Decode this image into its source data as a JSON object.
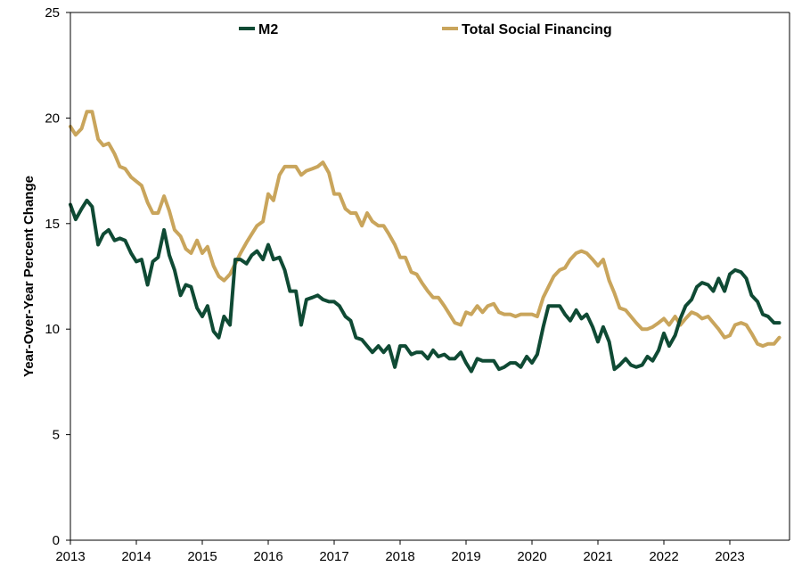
{
  "chart_data": {
    "type": "line",
    "title": "",
    "xlabel": "",
    "ylabel": "Year-Over-Year Percent Change",
    "xlim": [
      2013,
      2023.83
    ],
    "ylim": [
      0,
      25
    ],
    "x_ticks": [
      "2013",
      "2014",
      "2015",
      "2016",
      "2017",
      "2018",
      "2019",
      "2020",
      "2021",
      "2022",
      "2023"
    ],
    "y_ticks": [
      "0",
      "5",
      "10",
      "15",
      "20",
      "25"
    ],
    "grid": false,
    "legend_position": "top",
    "series": [
      {
        "name": "M2",
        "color": "#0f4a34",
        "points": [
          [
            2013.0,
            15.9
          ],
          [
            2013.08,
            15.2
          ],
          [
            2013.17,
            15.7
          ],
          [
            2013.25,
            16.1
          ],
          [
            2013.33,
            15.8
          ],
          [
            2013.42,
            14.0
          ],
          [
            2013.5,
            14.5
          ],
          [
            2013.58,
            14.7
          ],
          [
            2013.67,
            14.2
          ],
          [
            2013.75,
            14.3
          ],
          [
            2013.83,
            14.2
          ],
          [
            2013.92,
            13.6
          ],
          [
            2014.0,
            13.2
          ],
          [
            2014.08,
            13.3
          ],
          [
            2014.17,
            12.1
          ],
          [
            2014.25,
            13.2
          ],
          [
            2014.33,
            13.4
          ],
          [
            2014.42,
            14.7
          ],
          [
            2014.5,
            13.5
          ],
          [
            2014.58,
            12.8
          ],
          [
            2014.67,
            11.6
          ],
          [
            2014.75,
            12.1
          ],
          [
            2014.83,
            12.0
          ],
          [
            2014.92,
            11.0
          ],
          [
            2015.0,
            10.6
          ],
          [
            2015.08,
            11.1
          ],
          [
            2015.17,
            9.9
          ],
          [
            2015.25,
            9.6
          ],
          [
            2015.33,
            10.6
          ],
          [
            2015.42,
            10.2
          ],
          [
            2015.5,
            13.3
          ],
          [
            2015.58,
            13.3
          ],
          [
            2015.67,
            13.1
          ],
          [
            2015.75,
            13.5
          ],
          [
            2015.83,
            13.7
          ],
          [
            2015.92,
            13.3
          ],
          [
            2016.0,
            14.0
          ],
          [
            2016.08,
            13.3
          ],
          [
            2016.17,
            13.4
          ],
          [
            2016.25,
            12.8
          ],
          [
            2016.33,
            11.8
          ],
          [
            2016.42,
            11.8
          ],
          [
            2016.5,
            10.2
          ],
          [
            2016.58,
            11.4
          ],
          [
            2016.67,
            11.5
          ],
          [
            2016.75,
            11.6
          ],
          [
            2016.83,
            11.4
          ],
          [
            2016.92,
            11.3
          ],
          [
            2017.0,
            11.3
          ],
          [
            2017.08,
            11.1
          ],
          [
            2017.17,
            10.6
          ],
          [
            2017.25,
            10.4
          ],
          [
            2017.33,
            9.6
          ],
          [
            2017.42,
            9.5
          ],
          [
            2017.5,
            9.2
          ],
          [
            2017.58,
            8.9
          ],
          [
            2017.67,
            9.2
          ],
          [
            2017.75,
            8.9
          ],
          [
            2017.83,
            9.2
          ],
          [
            2017.92,
            8.2
          ],
          [
            2018.0,
            9.2
          ],
          [
            2018.08,
            9.2
          ],
          [
            2018.17,
            8.8
          ],
          [
            2018.25,
            8.9
          ],
          [
            2018.33,
            8.9
          ],
          [
            2018.42,
            8.6
          ],
          [
            2018.5,
            9.0
          ],
          [
            2018.58,
            8.7
          ],
          [
            2018.67,
            8.8
          ],
          [
            2018.75,
            8.6
          ],
          [
            2018.83,
            8.6
          ],
          [
            2018.92,
            8.9
          ],
          [
            2019.0,
            8.4
          ],
          [
            2019.08,
            8.0
          ],
          [
            2019.17,
            8.6
          ],
          [
            2019.25,
            8.5
          ],
          [
            2019.33,
            8.5
          ],
          [
            2019.42,
            8.5
          ],
          [
            2019.5,
            8.1
          ],
          [
            2019.58,
            8.2
          ],
          [
            2019.67,
            8.4
          ],
          [
            2019.75,
            8.4
          ],
          [
            2019.83,
            8.2
          ],
          [
            2019.92,
            8.7
          ],
          [
            2020.0,
            8.4
          ],
          [
            2020.08,
            8.8
          ],
          [
            2020.17,
            10.1
          ],
          [
            2020.25,
            11.1
          ],
          [
            2020.33,
            11.1
          ],
          [
            2020.42,
            11.1
          ],
          [
            2020.5,
            10.7
          ],
          [
            2020.58,
            10.4
          ],
          [
            2020.67,
            10.9
          ],
          [
            2020.75,
            10.5
          ],
          [
            2020.83,
            10.7
          ],
          [
            2020.92,
            10.1
          ],
          [
            2021.0,
            9.4
          ],
          [
            2021.08,
            10.1
          ],
          [
            2021.17,
            9.4
          ],
          [
            2021.25,
            8.1
          ],
          [
            2021.33,
            8.3
          ],
          [
            2021.42,
            8.6
          ],
          [
            2021.5,
            8.3
          ],
          [
            2021.58,
            8.2
          ],
          [
            2021.67,
            8.3
          ],
          [
            2021.75,
            8.7
          ],
          [
            2021.83,
            8.5
          ],
          [
            2021.92,
            9.0
          ],
          [
            2022.0,
            9.8
          ],
          [
            2022.08,
            9.2
          ],
          [
            2022.17,
            9.7
          ],
          [
            2022.25,
            10.5
          ],
          [
            2022.33,
            11.1
          ],
          [
            2022.42,
            11.4
          ],
          [
            2022.5,
            12.0
          ],
          [
            2022.58,
            12.2
          ],
          [
            2022.67,
            12.1
          ],
          [
            2022.75,
            11.8
          ],
          [
            2022.83,
            12.4
          ],
          [
            2022.92,
            11.8
          ],
          [
            2023.0,
            12.6
          ],
          [
            2023.08,
            12.8
          ],
          [
            2023.17,
            12.7
          ],
          [
            2023.25,
            12.4
          ],
          [
            2023.33,
            11.6
          ],
          [
            2023.42,
            11.3
          ],
          [
            2023.5,
            10.7
          ],
          [
            2023.58,
            10.6
          ],
          [
            2023.67,
            10.3
          ],
          [
            2023.75,
            10.3
          ]
        ]
      },
      {
        "name": "Total Social Financing",
        "color": "#c9a55c",
        "points": [
          [
            2013.0,
            19.6
          ],
          [
            2013.08,
            19.2
          ],
          [
            2013.17,
            19.5
          ],
          [
            2013.25,
            20.3
          ],
          [
            2013.33,
            20.3
          ],
          [
            2013.42,
            19.0
          ],
          [
            2013.5,
            18.7
          ],
          [
            2013.58,
            18.8
          ],
          [
            2013.67,
            18.3
          ],
          [
            2013.75,
            17.7
          ],
          [
            2013.83,
            17.6
          ],
          [
            2013.92,
            17.2
          ],
          [
            2014.0,
            17.0
          ],
          [
            2014.08,
            16.8
          ],
          [
            2014.17,
            16.0
          ],
          [
            2014.25,
            15.5
          ],
          [
            2014.33,
            15.5
          ],
          [
            2014.42,
            16.3
          ],
          [
            2014.5,
            15.6
          ],
          [
            2014.58,
            14.7
          ],
          [
            2014.67,
            14.4
          ],
          [
            2014.75,
            13.8
          ],
          [
            2014.83,
            13.6
          ],
          [
            2014.92,
            14.2
          ],
          [
            2015.0,
            13.6
          ],
          [
            2015.08,
            13.9
          ],
          [
            2015.17,
            13.0
          ],
          [
            2015.25,
            12.5
          ],
          [
            2015.33,
            12.3
          ],
          [
            2015.42,
            12.6
          ],
          [
            2015.5,
            13.1
          ],
          [
            2015.58,
            13.6
          ],
          [
            2015.67,
            14.1
          ],
          [
            2015.75,
            14.5
          ],
          [
            2015.83,
            14.9
          ],
          [
            2015.92,
            15.1
          ],
          [
            2016.0,
            16.4
          ],
          [
            2016.08,
            16.1
          ],
          [
            2016.17,
            17.3
          ],
          [
            2016.25,
            17.7
          ],
          [
            2016.33,
            17.7
          ],
          [
            2016.42,
            17.7
          ],
          [
            2016.5,
            17.3
          ],
          [
            2016.58,
            17.5
          ],
          [
            2016.67,
            17.6
          ],
          [
            2016.75,
            17.7
          ],
          [
            2016.83,
            17.9
          ],
          [
            2016.92,
            17.4
          ],
          [
            2017.0,
            16.4
          ],
          [
            2017.08,
            16.4
          ],
          [
            2017.17,
            15.7
          ],
          [
            2017.25,
            15.5
          ],
          [
            2017.33,
            15.5
          ],
          [
            2017.42,
            14.9
          ],
          [
            2017.5,
            15.5
          ],
          [
            2017.58,
            15.1
          ],
          [
            2017.67,
            14.9
          ],
          [
            2017.75,
            14.9
          ],
          [
            2017.83,
            14.5
          ],
          [
            2017.92,
            14.0
          ],
          [
            2018.0,
            13.4
          ],
          [
            2018.08,
            13.4
          ],
          [
            2018.17,
            12.7
          ],
          [
            2018.25,
            12.6
          ],
          [
            2018.33,
            12.2
          ],
          [
            2018.42,
            11.8
          ],
          [
            2018.5,
            11.5
          ],
          [
            2018.58,
            11.5
          ],
          [
            2018.67,
            11.1
          ],
          [
            2018.75,
            10.7
          ],
          [
            2018.83,
            10.3
          ],
          [
            2018.92,
            10.2
          ],
          [
            2019.0,
            10.8
          ],
          [
            2019.08,
            10.7
          ],
          [
            2019.17,
            11.1
          ],
          [
            2019.25,
            10.8
          ],
          [
            2019.33,
            11.1
          ],
          [
            2019.42,
            11.2
          ],
          [
            2019.5,
            10.8
          ],
          [
            2019.58,
            10.7
          ],
          [
            2019.67,
            10.7
          ],
          [
            2019.75,
            10.6
          ],
          [
            2019.83,
            10.7
          ],
          [
            2019.92,
            10.7
          ],
          [
            2020.0,
            10.7
          ],
          [
            2020.08,
            10.6
          ],
          [
            2020.17,
            11.5
          ],
          [
            2020.25,
            12.0
          ],
          [
            2020.33,
            12.5
          ],
          [
            2020.42,
            12.8
          ],
          [
            2020.5,
            12.9
          ],
          [
            2020.58,
            13.3
          ],
          [
            2020.67,
            13.6
          ],
          [
            2020.75,
            13.7
          ],
          [
            2020.83,
            13.6
          ],
          [
            2020.92,
            13.3
          ],
          [
            2021.0,
            13.0
          ],
          [
            2021.08,
            13.3
          ],
          [
            2021.17,
            12.3
          ],
          [
            2021.25,
            11.7
          ],
          [
            2021.33,
            11.0
          ],
          [
            2021.42,
            10.9
          ],
          [
            2021.5,
            10.6
          ],
          [
            2021.58,
            10.3
          ],
          [
            2021.67,
            10.0
          ],
          [
            2021.75,
            10.0
          ],
          [
            2021.83,
            10.1
          ],
          [
            2021.92,
            10.3
          ],
          [
            2022.0,
            10.5
          ],
          [
            2022.08,
            10.2
          ],
          [
            2022.17,
            10.6
          ],
          [
            2022.25,
            10.2
          ],
          [
            2022.33,
            10.5
          ],
          [
            2022.42,
            10.8
          ],
          [
            2022.5,
            10.7
          ],
          [
            2022.58,
            10.5
          ],
          [
            2022.67,
            10.6
          ],
          [
            2022.75,
            10.3
          ],
          [
            2022.83,
            10.0
          ],
          [
            2022.92,
            9.6
          ],
          [
            2023.0,
            9.7
          ],
          [
            2023.08,
            10.2
          ],
          [
            2023.17,
            10.3
          ],
          [
            2023.25,
            10.2
          ],
          [
            2023.33,
            9.8
          ],
          [
            2023.42,
            9.3
          ],
          [
            2023.5,
            9.2
          ],
          [
            2023.58,
            9.3
          ],
          [
            2023.67,
            9.3
          ],
          [
            2023.75,
            9.6
          ]
        ]
      }
    ]
  }
}
